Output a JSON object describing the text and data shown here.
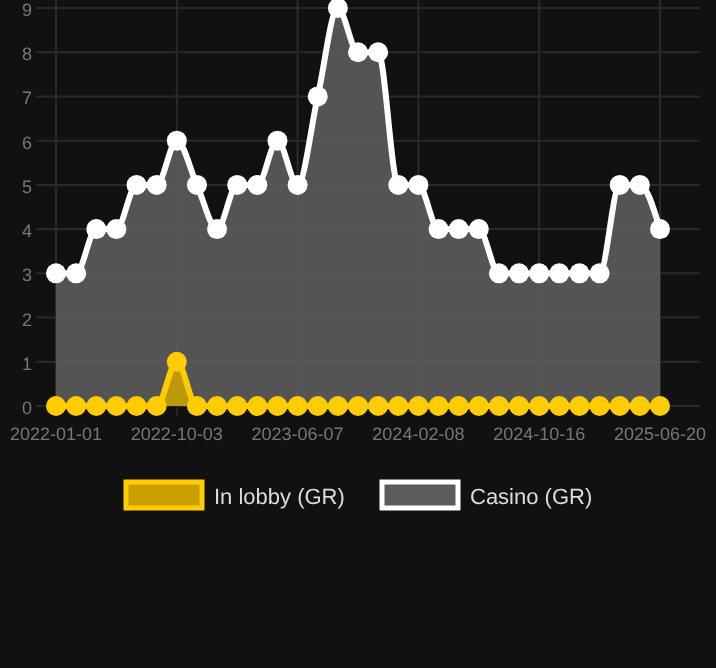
{
  "chart_data": {
    "type": "area",
    "categories": [
      "2022-01-01",
      null,
      null,
      null,
      null,
      null,
      "2022-10-03",
      null,
      null,
      null,
      null,
      null,
      "2023-06-07",
      null,
      null,
      null,
      null,
      null,
      "2024-02-08",
      null,
      null,
      null,
      null,
      null,
      "2024-10-16",
      null,
      null,
      null,
      null,
      null,
      "2025-06-20"
    ],
    "series": [
      {
        "name": "In lobby (GR)",
        "color": "#ffcc00",
        "values": [
          0,
          0,
          0,
          0,
          0,
          0,
          1,
          0,
          0,
          0,
          0,
          0,
          0,
          0,
          0,
          0,
          0,
          0,
          0,
          0,
          0,
          0,
          0,
          0,
          0,
          0,
          0,
          0,
          0,
          0,
          0
        ]
      },
      {
        "name": "Casino (GR)",
        "color": "#ffffff",
        "values": [
          3,
          3,
          4,
          4,
          5,
          5,
          6,
          5,
          4,
          5,
          5,
          6,
          5,
          7,
          9,
          8,
          8,
          5,
          5,
          4,
          4,
          4,
          3,
          3,
          3,
          3,
          3,
          3,
          5,
          5,
          4
        ]
      }
    ],
    "ylim": [
      0,
      9
    ],
    "yticks": [
      0,
      1,
      2,
      3,
      4,
      5,
      6,
      7,
      8,
      9
    ],
    "grid": true,
    "legend": "bottom",
    "marker": "circle"
  }
}
